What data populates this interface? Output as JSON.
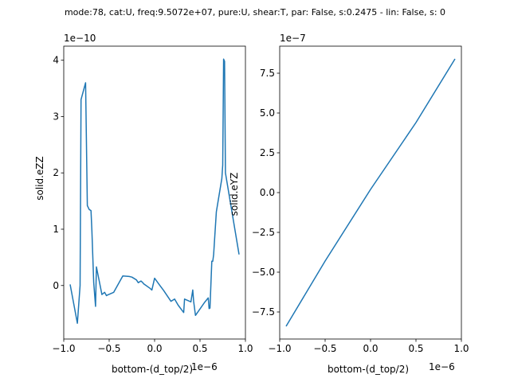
{
  "figure": {
    "suptitle": "mode:78, cat:U, freq:9.5072e+07, pure:U, shear:T, par: False, s:0.2475 - lin: False, s: 0"
  },
  "chart_data": [
    {
      "type": "line",
      "xlabel": "bottom-(d_top/2)",
      "ylabel": "solid.eZZ",
      "x_offset_label": "1e−6",
      "y_offset_label": "1e−10",
      "xlim": [
        -1.0,
        1.0
      ],
      "ylim": [
        -0.95,
        4.25
      ],
      "xticks": [
        -1.0,
        -0.5,
        0.0,
        0.5,
        1.0
      ],
      "xtick_labels": [
        "−1.0",
        "−0.5",
        "0.0",
        "0.5",
        "1.0"
      ],
      "yticks": [
        0,
        1,
        2,
        3,
        4
      ],
      "ytick_labels": [
        "0",
        "1",
        "2",
        "3",
        "4"
      ],
      "color": "#1f77b4",
      "series": [
        {
          "x": [
            -0.93,
            -0.85,
            -0.82,
            -0.81,
            -0.78,
            -0.76,
            -0.74,
            -0.72,
            -0.7,
            -0.69,
            -0.67,
            -0.65,
            -0.64,
            -0.58,
            -0.55,
            -0.53,
            -0.52,
            -0.45,
            -0.35,
            -0.28,
            -0.25,
            -0.2,
            -0.18,
            -0.15,
            -0.13,
            -0.12,
            -0.05,
            -0.03,
            0.0,
            0.05,
            0.1,
            0.18,
            0.22,
            0.26,
            0.32,
            0.33,
            0.4,
            0.42,
            0.43,
            0.45,
            0.55,
            0.59,
            0.6,
            0.61,
            0.63,
            0.64,
            0.65,
            0.66,
            0.68,
            0.74,
            0.75,
            0.76,
            0.77,
            0.78,
            0.93
          ],
          "y": [
            0.02,
            -0.67,
            0.0,
            3.3,
            3.48,
            3.6,
            1.42,
            1.35,
            1.33,
            0.98,
            0.05,
            -0.37,
            0.33,
            -0.16,
            -0.12,
            -0.18,
            -0.17,
            -0.12,
            0.17,
            0.16,
            0.15,
            0.1,
            0.05,
            0.08,
            0.05,
            0.03,
            -0.05,
            -0.08,
            0.13,
            0.02,
            -0.09,
            -0.28,
            -0.24,
            -0.35,
            -0.48,
            -0.24,
            -0.29,
            -0.08,
            -0.28,
            -0.53,
            -0.3,
            -0.22,
            -0.41,
            -0.4,
            0.43,
            0.43,
            0.55,
            0.8,
            1.31,
            1.9,
            2.14,
            4.02,
            3.98,
            2.0,
            0.55
          ]
        }
      ]
    },
    {
      "type": "line",
      "xlabel": "bottom-(d_top/2)",
      "ylabel": "solid.eYZ",
      "x_offset_label": "1e−6",
      "y_offset_label": "1e−7",
      "xlim": [
        -1.0,
        1.0
      ],
      "ylim": [
        -9.2,
        9.2
      ],
      "xticks": [
        -1.0,
        -0.5,
        0.0,
        0.5,
        1.0
      ],
      "xtick_labels": [
        "−1.0",
        "−0.5",
        "0.0",
        "0.5",
        "1.0"
      ],
      "yticks": [
        -7.5,
        -5.0,
        -2.5,
        0.0,
        2.5,
        5.0,
        7.5
      ],
      "ytick_labels": [
        "−7.5",
        "−5.0",
        "−2.5",
        "0.0",
        "2.5",
        "5.0",
        "7.5"
      ],
      "color": "#1f77b4",
      "series": [
        {
          "x": [
            -0.93,
            -0.5,
            0.0,
            0.5,
            0.93
          ],
          "y": [
            -8.4,
            -4.3,
            0.2,
            4.4,
            8.4
          ]
        }
      ]
    }
  ]
}
